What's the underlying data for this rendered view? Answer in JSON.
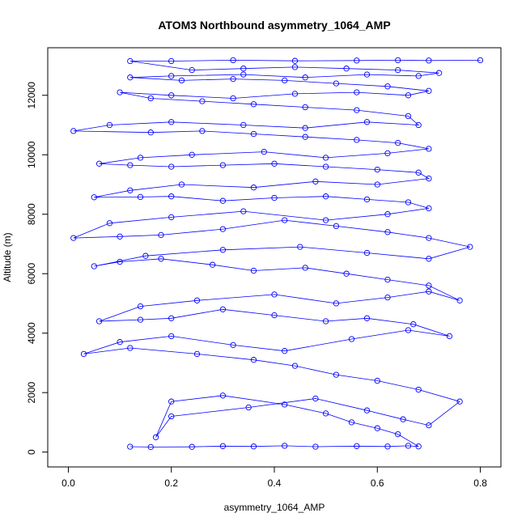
{
  "chart_data": {
    "type": "scatter",
    "title": "ATOM3 Northbound asymmetry_1064_AMP",
    "xlabel": "asymmetry_1064_AMP",
    "ylabel": "Altitude (m)",
    "xlim": [
      -0.04,
      0.84
    ],
    "ylim": [
      -500,
      13600
    ],
    "xticks": [
      0.0,
      0.2,
      0.4,
      0.6,
      0.8
    ],
    "xtick_labels": [
      "0.0",
      "0.2",
      "0.4",
      "0.6",
      "0.8"
    ],
    "yticks": [
      0,
      2000,
      4000,
      6000,
      8000,
      10000,
      12000
    ],
    "ytick_labels": [
      "0",
      "2000",
      "4000",
      "6000",
      "8000",
      "10000",
      "12000"
    ],
    "grid": false,
    "legend": "none",
    "marker": "open-circle",
    "connected": true,
    "color": "#0000ff",
    "series": [
      {
        "x": [
          0.12,
          0.16,
          0.24,
          0.3,
          0.36,
          0.42,
          0.48,
          0.56,
          0.62,
          0.66,
          0.68,
          0.64,
          0.6,
          0.55,
          0.5,
          0.42,
          0.3,
          0.2,
          0.17,
          0.2,
          0.35,
          0.48,
          0.58,
          0.65,
          0.7,
          0.76,
          0.68,
          0.6,
          0.52,
          0.44,
          0.36,
          0.25,
          0.12,
          0.03,
          0.1,
          0.2,
          0.32,
          0.42,
          0.55,
          0.66,
          0.74,
          0.67,
          0.58,
          0.5,
          0.4,
          0.3,
          0.2,
          0.14,
          0.06,
          0.14,
          0.25,
          0.4,
          0.52,
          0.62,
          0.7,
          0.76,
          0.7,
          0.62,
          0.54,
          0.46,
          0.36,
          0.28,
          0.18,
          0.1,
          0.05,
          0.15,
          0.3,
          0.45,
          0.58,
          0.7,
          0.78,
          0.7,
          0.62,
          0.52,
          0.42,
          0.3,
          0.18,
          0.1,
          0.01,
          0.08,
          0.2,
          0.34,
          0.5,
          0.62,
          0.7,
          0.66,
          0.58,
          0.5,
          0.4,
          0.3,
          0.2,
          0.14,
          0.05,
          0.12,
          0.22,
          0.36,
          0.48,
          0.6,
          0.7,
          0.68,
          0.6,
          0.5,
          0.4,
          0.3,
          0.2,
          0.12,
          0.06,
          0.14,
          0.24,
          0.38,
          0.5,
          0.62,
          0.7,
          0.64,
          0.56,
          0.46,
          0.36,
          0.26,
          0.16,
          0.01,
          0.08,
          0.2,
          0.34,
          0.46,
          0.58,
          0.68,
          0.66,
          0.56,
          0.46,
          0.36,
          0.26,
          0.16,
          0.1,
          0.2,
          0.32,
          0.44,
          0.56,
          0.66,
          0.7,
          0.62,
          0.52,
          0.42,
          0.32,
          0.22,
          0.12,
          0.2,
          0.34,
          0.46,
          0.58,
          0.68,
          0.72,
          0.64,
          0.54,
          0.44,
          0.34,
          0.24,
          0.12,
          0.2,
          0.32,
          0.44,
          0.56,
          0.64,
          0.7,
          0.8
        ],
        "y": [
          180,
          170,
          175,
          200,
          190,
          210,
          180,
          200,
          185,
          210,
          190,
          600,
          800,
          1000,
          1300,
          1600,
          1900,
          1700,
          500,
          1200,
          1500,
          1800,
          1400,
          1100,
          900,
          1700,
          2100,
          2400,
          2600,
          2900,
          3100,
          3300,
          3500,
          3300,
          3700,
          3900,
          3600,
          3400,
          3800,
          4100,
          3900,
          4300,
          4500,
          4400,
          4600,
          4800,
          4500,
          4450,
          4400,
          4900,
          5100,
          5300,
          5000,
          5200,
          5400,
          5100,
          5600,
          5800,
          6000,
          6200,
          6100,
          6300,
          6500,
          6400,
          6250,
          6600,
          6800,
          6900,
          6700,
          6500,
          6900,
          7200,
          7400,
          7600,
          7800,
          7500,
          7300,
          7250,
          7200,
          7700,
          7900,
          8100,
          7800,
          8000,
          8200,
          8400,
          8500,
          8600,
          8550,
          8450,
          8600,
          8580,
          8570,
          8800,
          9000,
          8900,
          9100,
          9000,
          9200,
          9400,
          9500,
          9600,
          9700,
          9650,
          9600,
          9650,
          9700,
          9900,
          10000,
          10100,
          9900,
          10050,
          10200,
          10400,
          10500,
          10600,
          10700,
          10800,
          10750,
          10800,
          11000,
          11100,
          11000,
          10900,
          11100,
          11000,
          11300,
          11500,
          11600,
          11700,
          11800,
          11900,
          12100,
          12000,
          11900,
          12050,
          12100,
          12000,
          12150,
          12300,
          12400,
          12500,
          12550,
          12500,
          12600,
          12650,
          12700,
          12600,
          12700,
          12650,
          12750,
          12850,
          12900,
          12950,
          12900,
          12850,
          13150,
          13150,
          13180,
          13160,
          13170,
          13180,
          13170,
          13180
        ]
      }
    ]
  }
}
